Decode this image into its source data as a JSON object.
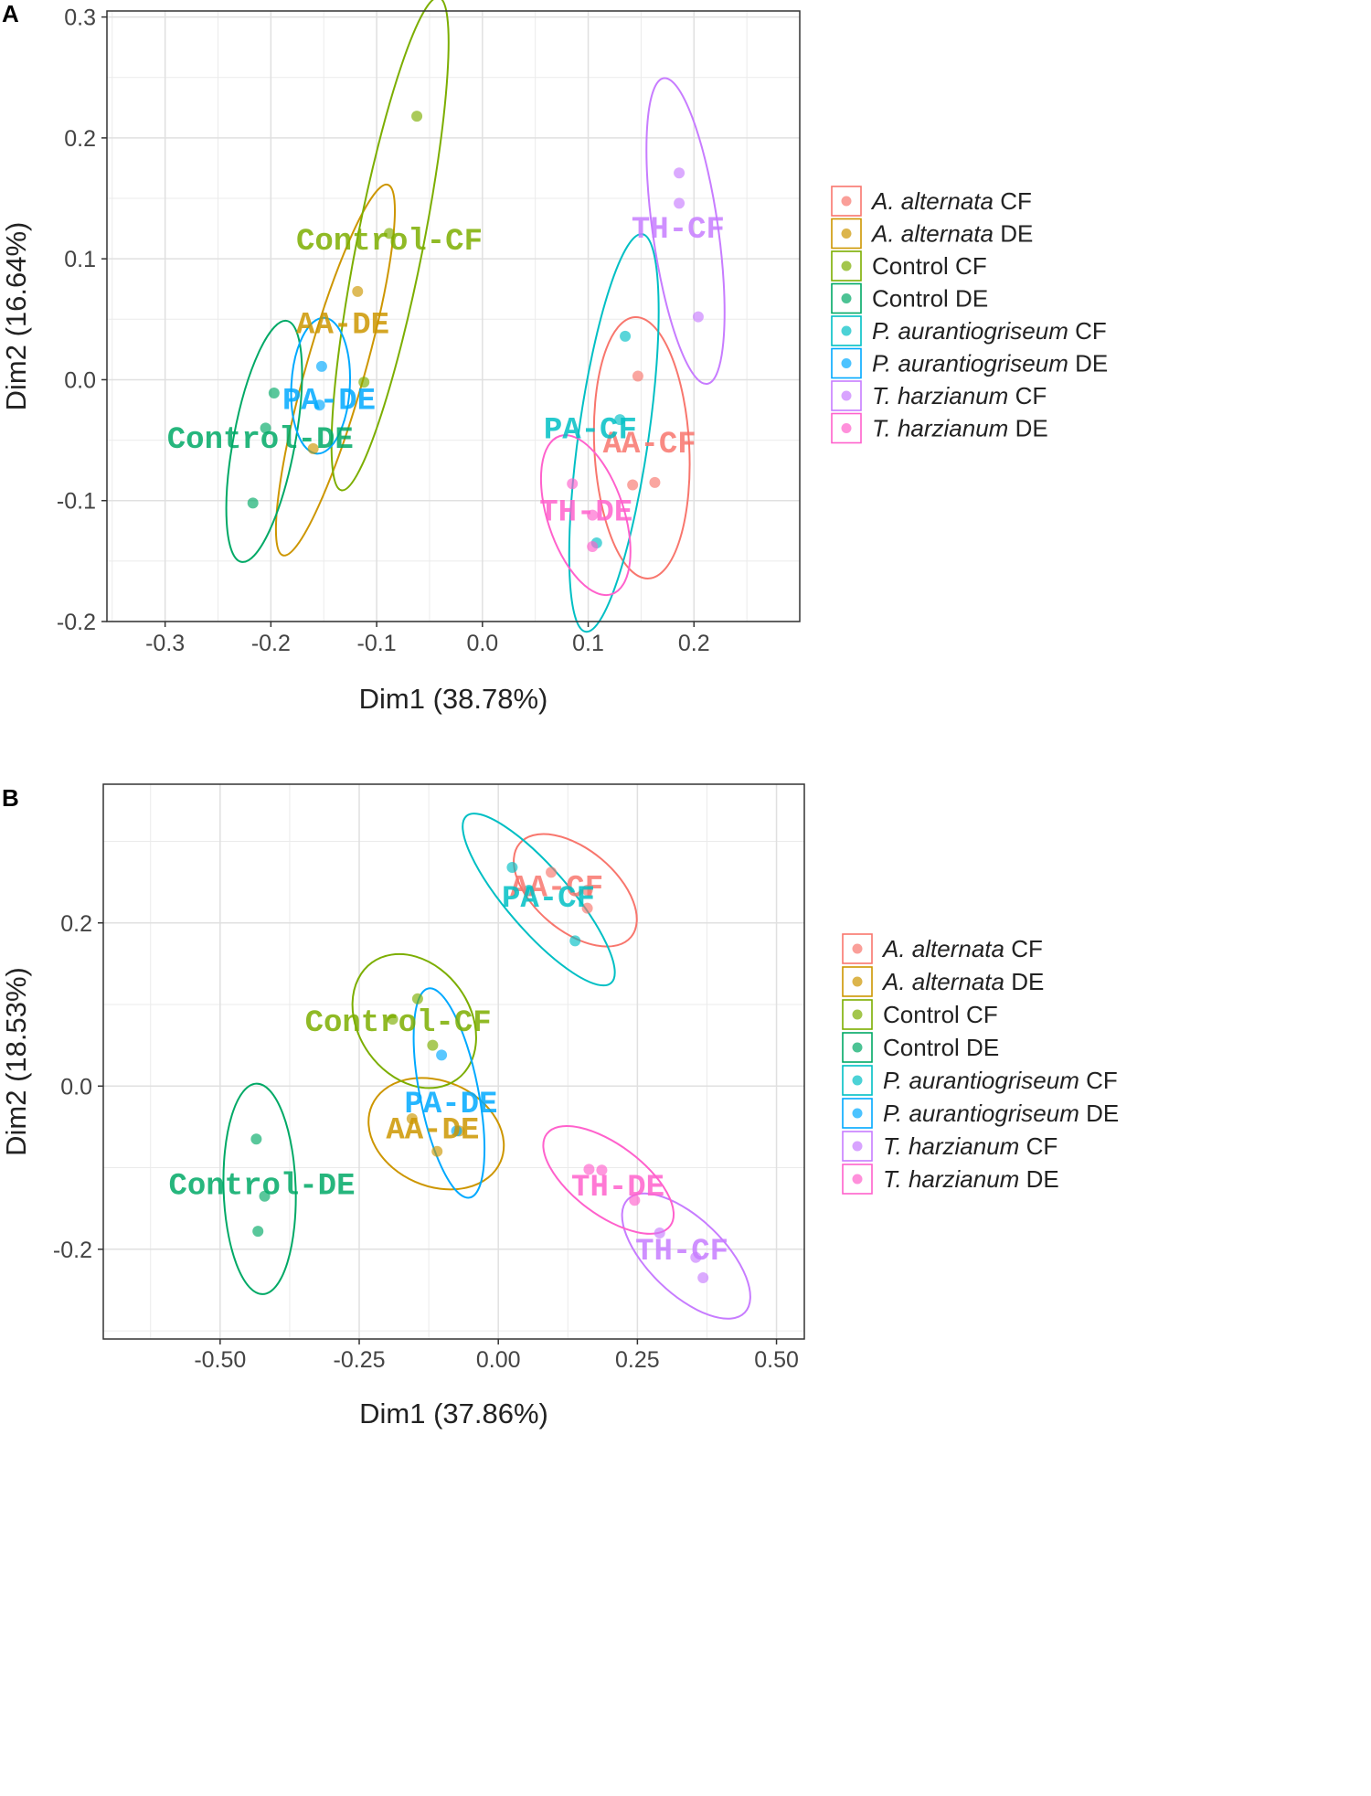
{
  "chart_data": [
    {
      "type": "scatter",
      "panel_label": "A",
      "xlabel": "Dim1 (38.78%)",
      "ylabel": "Dim2 (16.64%)",
      "xlim": [
        -0.355,
        0.3
      ],
      "ylim": [
        -0.2,
        0.305
      ],
      "x_ticks": [
        -0.3,
        -0.2,
        -0.1,
        0.0,
        0.1,
        0.2
      ],
      "x_tick_labels": [
        "-0.3",
        "-0.2",
        "-0.1",
        "0.0",
        "0.1",
        "0.2"
      ],
      "y_ticks": [
        -0.2,
        -0.1,
        0.0,
        0.1,
        0.2,
        0.3
      ],
      "y_tick_labels": [
        "-0.2",
        "-0.1",
        "0.0",
        "0.1",
        "0.2",
        "0.3"
      ],
      "grid": true,
      "legend_position": "right",
      "series": [
        {
          "name": "A. alternata CF",
          "species": "A. alternata",
          "suffix": " CF",
          "label": "AA-CF",
          "color": "#F8766D",
          "points": [
            [
              0.147,
              0.003
            ],
            [
              0.163,
              -0.085
            ],
            [
              0.142,
              -0.087
            ]
          ],
          "label_pos": [
            0.158,
            -0.052
          ]
        },
        {
          "name": "A. alternata DE",
          "species": "A. alternata",
          "suffix": " DE",
          "label": "AA-DE",
          "color": "#CD9600",
          "points": [
            [
              -0.118,
              0.073
            ],
            [
              -0.16,
              -0.057
            ]
          ],
          "label_pos": [
            -0.132,
            0.047
          ]
        },
        {
          "name": "Control CF",
          "species": "",
          "suffix": "Control CF",
          "label": "Control-CF",
          "color": "#7CAE00",
          "points": [
            [
              -0.062,
              0.218
            ],
            [
              -0.088,
              0.121
            ],
            [
              -0.112,
              -0.002
            ]
          ],
          "label_pos": [
            -0.088,
            0.116
          ]
        },
        {
          "name": "Control DE",
          "species": "",
          "suffix": "Control DE",
          "label": "Control-DE",
          "color": "#00A966",
          "points": [
            [
              -0.197,
              -0.011
            ],
            [
              -0.205,
              -0.04
            ],
            [
              -0.217,
              -0.102
            ]
          ],
          "label_pos": [
            -0.21,
            -0.048
          ]
        },
        {
          "name": "P. aurantiogriseum CF",
          "species": "P. aurantiogriseum",
          "suffix": " CF",
          "label": "PA-CF",
          "color": "#00BFC4",
          "points": [
            [
              0.135,
              0.036
            ],
            [
              0.13,
              -0.033
            ],
            [
              0.108,
              -0.135
            ]
          ],
          "label_pos": [
            0.102,
            -0.04
          ]
        },
        {
          "name": "P. aurantiogriseum DE",
          "species": "P. aurantiogriseum",
          "suffix": " DE",
          "label": "PA-DE",
          "color": "#00A9FF",
          "points": [
            [
              -0.152,
              0.011
            ],
            [
              -0.154,
              -0.021
            ]
          ],
          "label_pos": [
            -0.145,
            -0.016
          ]
        },
        {
          "name": "T. harzianum CF",
          "species": "T. harzianum",
          "suffix": " CF",
          "label": "TH-CF",
          "color": "#C77CFF",
          "points": [
            [
              0.186,
              0.171
            ],
            [
              0.186,
              0.146
            ],
            [
              0.204,
              0.052
            ]
          ],
          "label_pos": [
            0.185,
            0.126
          ]
        },
        {
          "name": "T. harzianum DE",
          "species": "T. harzianum",
          "suffix": " DE",
          "label": "TH-DE",
          "color": "#FF61CC",
          "points": [
            [
              0.085,
              -0.086
            ],
            [
              0.104,
              -0.112
            ],
            [
              0.104,
              -0.138
            ]
          ],
          "label_pos": [
            0.098,
            -0.108
          ]
        }
      ]
    },
    {
      "type": "scatter",
      "panel_label": "B",
      "xlabel": "Dim1 (37.86%)",
      "ylabel": "Dim2 (18.53%)",
      "xlim": [
        -0.71,
        0.55
      ],
      "ylim": [
        -0.31,
        0.37
      ],
      "x_ticks": [
        -0.5,
        -0.25,
        0.0,
        0.25,
        0.5
      ],
      "x_tick_labels": [
        "-0.50",
        "-0.25",
        "0.00",
        "0.25",
        "0.50"
      ],
      "y_ticks": [
        -0.2,
        0.0,
        0.2
      ],
      "y_tick_labels": [
        "-0.2",
        "0.0",
        "0.2"
      ],
      "grid": true,
      "legend_position": "right",
      "series": [
        {
          "name": "A. alternata CF",
          "species": "A. alternata",
          "suffix": " CF",
          "label": "AA-CF",
          "color": "#F8766D",
          "points": [
            [
              0.095,
              0.262
            ],
            [
              0.16,
              0.218
            ],
            [
              0.16,
              0.24
            ]
          ],
          "label_pos": [
            0.105,
            0.245
          ]
        },
        {
          "name": "A. alternata DE",
          "species": "A. alternata",
          "suffix": " DE",
          "label": "AA-DE",
          "color": "#CD9600",
          "points": [
            [
              -0.155,
              -0.04
            ],
            [
              -0.11,
              -0.08
            ],
            [
              -0.07,
              -0.055
            ]
          ],
          "label_pos": [
            -0.118,
            -0.052
          ]
        },
        {
          "name": "Control CF",
          "species": "",
          "suffix": "Control CF",
          "label": "Control-CF",
          "color": "#7CAE00",
          "points": [
            [
              -0.145,
              0.107
            ],
            [
              -0.19,
              0.082
            ],
            [
              -0.118,
              0.05
            ]
          ],
          "label_pos": [
            -0.18,
            0.08
          ]
        },
        {
          "name": "Control DE",
          "species": "",
          "suffix": "Control DE",
          "label": "Control-DE",
          "color": "#00A966",
          "points": [
            [
              -0.435,
              -0.065
            ],
            [
              -0.42,
              -0.135
            ],
            [
              -0.432,
              -0.178
            ]
          ],
          "label_pos": [
            -0.425,
            -0.12
          ]
        },
        {
          "name": "P. aurantiogriseum CF",
          "species": "P. aurantiogriseum",
          "suffix": " CF",
          "label": "PA-CF",
          "color": "#00BFC4",
          "points": [
            [
              0.025,
              0.268
            ],
            [
              0.138,
              0.178
            ],
            [
              0.055,
              0.24
            ]
          ],
          "label_pos": [
            0.09,
            0.232
          ]
        },
        {
          "name": "P. aurantiogriseum DE",
          "species": "P. aurantiogriseum",
          "suffix": " DE",
          "label": "PA-DE",
          "color": "#00A9FF",
          "points": [
            [
              -0.102,
              0.038
            ],
            [
              -0.075,
              -0.055
            ]
          ],
          "label_pos": [
            -0.085,
            -0.02
          ]
        },
        {
          "name": "T. harzianum CF",
          "species": "T. harzianum",
          "suffix": " CF",
          "label": "TH-CF",
          "color": "#C77CFF",
          "points": [
            [
              0.29,
              -0.18
            ],
            [
              0.355,
              -0.21
            ],
            [
              0.368,
              -0.235
            ]
          ],
          "label_pos": [
            0.33,
            -0.2
          ]
        },
        {
          "name": "T. harzianum DE",
          "species": "T. harzianum",
          "suffix": " DE",
          "label": "TH-DE",
          "color": "#FF61CC",
          "points": [
            [
              0.163,
              -0.102
            ],
            [
              0.186,
              -0.103
            ],
            [
              0.245,
              -0.14
            ]
          ],
          "label_pos": [
            0.215,
            -0.122
          ]
        }
      ]
    }
  ]
}
